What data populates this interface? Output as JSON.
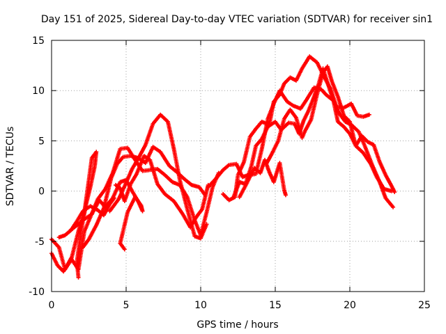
{
  "chart_data": {
    "type": "scatter",
    "title": "Day 151 of 2025, Sidereal Day-to-day VTEC variation (SDTVAR) for receiver sin1",
    "xlabel": "GPS time / hours",
    "ylabel": "SDTVAR / TECUs",
    "xlim": [
      0,
      25
    ],
    "ylim": [
      -10,
      15
    ],
    "x_ticks": [
      0,
      5,
      10,
      15,
      20,
      25
    ],
    "y_ticks": [
      -10,
      -5,
      0,
      5,
      10,
      15
    ],
    "x_tick_labels": [
      "0",
      "5",
      "10",
      "15",
      "20",
      "25"
    ],
    "y_tick_labels": [
      "-10",
      "-5",
      "0",
      "5",
      "10",
      "15"
    ],
    "grid": true,
    "marker": "+",
    "series_color": "#ff0000",
    "series": [
      {
        "name": "satellite-track-1",
        "points": [
          [
            0.0,
            -4.8
          ],
          [
            0.5,
            -5.6
          ],
          [
            0.9,
            -7.8
          ],
          [
            1.3,
            -6.7
          ],
          [
            1.8,
            -7.8
          ],
          [
            2.2,
            -4.0
          ],
          [
            2.6,
            -2.6
          ],
          [
            3.1,
            -0.8
          ],
          [
            3.6,
            0.2
          ],
          [
            4.1,
            1.8
          ],
          [
            4.6,
            4.2
          ],
          [
            5.1,
            4.3
          ],
          [
            5.6,
            3.1
          ],
          [
            6.1,
            2.0
          ],
          [
            6.6,
            2.1
          ],
          [
            7.1,
            2.2
          ],
          [
            7.6,
            1.6
          ],
          [
            8.1,
            0.9
          ],
          [
            8.6,
            0.6
          ],
          [
            9.1,
            -0.6
          ],
          [
            9.6,
            -2.9
          ],
          [
            10.0,
            -4.4
          ],
          [
            10.4,
            -2.1
          ],
          [
            10.8,
            0.4
          ],
          [
            11.2,
            1.8
          ]
        ]
      },
      {
        "name": "satellite-track-2",
        "points": [
          [
            1.2,
            -4.0
          ],
          [
            1.7,
            -3.4
          ],
          [
            2.2,
            -2.8
          ],
          [
            2.7,
            -2.3
          ],
          [
            3.2,
            -0.9
          ],
          [
            3.6,
            -1.6
          ],
          [
            4.1,
            -0.7
          ],
          [
            4.6,
            0.9
          ],
          [
            5.0,
            1.1
          ],
          [
            5.4,
            0.0
          ],
          [
            5.8,
            -1.0
          ],
          [
            6.1,
            -2.0
          ],
          [
            6.0,
            -1.4
          ],
          [
            5.6,
            -0.6
          ],
          [
            5.1,
            -2.1
          ],
          [
            4.6,
            -5.2
          ],
          [
            4.9,
            -5.8
          ]
        ]
      },
      {
        "name": "satellite-track-3",
        "points": [
          [
            0.0,
            -6.2
          ],
          [
            0.4,
            -7.4
          ],
          [
            0.8,
            -8.0
          ],
          [
            1.3,
            -6.9
          ],
          [
            1.8,
            -4.0
          ],
          [
            2.2,
            -2.1
          ],
          [
            2.5,
            1.1
          ],
          [
            2.7,
            3.3
          ],
          [
            3.0,
            3.9
          ],
          [
            2.9,
            2.5
          ],
          [
            2.6,
            0.4
          ],
          [
            2.3,
            -1.4
          ],
          [
            2.0,
            -3.8
          ],
          [
            1.7,
            -7.0
          ],
          [
            1.8,
            -8.6
          ]
        ]
      },
      {
        "name": "satellite-track-4",
        "points": [
          [
            2.1,
            -5.6
          ],
          [
            2.5,
            -4.8
          ],
          [
            3.0,
            -3.4
          ],
          [
            3.5,
            -1.7
          ],
          [
            4.0,
            1.3
          ],
          [
            4.4,
            2.7
          ],
          [
            4.8,
            3.4
          ],
          [
            5.3,
            3.5
          ],
          [
            5.8,
            3.3
          ],
          [
            6.3,
            2.8
          ],
          [
            6.8,
            4.4
          ],
          [
            7.3,
            3.9
          ],
          [
            7.9,
            2.5
          ],
          [
            8.4,
            1.9
          ],
          [
            8.9,
            1.2
          ],
          [
            9.4,
            0.6
          ],
          [
            9.9,
            0.4
          ],
          [
            10.3,
            -0.4
          ]
        ]
      },
      {
        "name": "satellite-track-5",
        "points": [
          [
            3.9,
            -2.0
          ],
          [
            4.5,
            -0.8
          ],
          [
            4.9,
            0.5
          ],
          [
            5.4,
            2.2
          ],
          [
            5.8,
            3.2
          ],
          [
            6.3,
            4.6
          ],
          [
            6.8,
            6.7
          ],
          [
            7.3,
            7.6
          ],
          [
            7.8,
            6.9
          ],
          [
            8.2,
            4.2
          ],
          [
            8.6,
            1.1
          ],
          [
            9.1,
            -1.8
          ],
          [
            9.6,
            -4.5
          ],
          [
            10.0,
            -4.7
          ],
          [
            10.4,
            -3.3
          ]
        ]
      },
      {
        "name": "satellite-track-6",
        "points": [
          [
            4.3,
            0.6
          ],
          [
            4.6,
            0.3
          ],
          [
            4.9,
            -1.0
          ],
          [
            5.3,
            0.7
          ],
          [
            5.7,
            1.7
          ],
          [
            6.2,
            3.5
          ],
          [
            6.6,
            3.1
          ],
          [
            7.1,
            0.7
          ],
          [
            7.6,
            -0.3
          ],
          [
            8.2,
            -1.0
          ],
          [
            8.8,
            -2.3
          ],
          [
            9.3,
            -3.6
          ],
          [
            9.7,
            -2.6
          ],
          [
            10.1,
            -1.8
          ],
          [
            10.5,
            0.6
          ]
        ]
      },
      {
        "name": "satellite-track-7",
        "points": [
          [
            11.5,
            -0.3
          ],
          [
            11.9,
            -0.9
          ],
          [
            12.3,
            -0.6
          ],
          [
            12.5,
            1.6
          ],
          [
            12.9,
            2.9
          ],
          [
            13.3,
            5.4
          ],
          [
            13.7,
            6.2
          ],
          [
            14.1,
            6.9
          ],
          [
            14.6,
            6.6
          ],
          [
            14.9,
            8.9
          ],
          [
            15.3,
            9.6
          ],
          [
            15.6,
            10.7
          ],
          [
            16.0,
            11.3
          ],
          [
            16.4,
            11.0
          ],
          [
            16.8,
            12.2
          ],
          [
            17.3,
            13.4
          ],
          [
            17.8,
            12.8
          ],
          [
            18.3,
            11.3
          ],
          [
            18.7,
            10.2
          ],
          [
            19.1,
            8.4
          ],
          [
            19.6,
            8.3
          ],
          [
            20.1,
            8.7
          ],
          [
            20.5,
            7.5
          ],
          [
            20.9,
            7.4
          ],
          [
            21.3,
            7.6
          ]
        ]
      },
      {
        "name": "satellite-track-8",
        "points": [
          [
            12.2,
            -0.6
          ],
          [
            12.6,
            0.9
          ],
          [
            13.0,
            0.7
          ],
          [
            13.4,
            2.5
          ],
          [
            13.7,
            4.5
          ],
          [
            14.1,
            5.2
          ],
          [
            14.5,
            6.4
          ],
          [
            15.0,
            6.9
          ],
          [
            15.4,
            6.1
          ],
          [
            15.9,
            6.8
          ],
          [
            16.3,
            6.7
          ],
          [
            16.6,
            5.7
          ],
          [
            16.9,
            7.0
          ],
          [
            17.2,
            7.9
          ],
          [
            17.5,
            9.0
          ],
          [
            17.9,
            10.6
          ],
          [
            18.2,
            12.2
          ],
          [
            18.5,
            10.8
          ],
          [
            18.9,
            9.0
          ],
          [
            19.3,
            7.7
          ],
          [
            19.7,
            6.9
          ],
          [
            20.1,
            6.6
          ],
          [
            20.6,
            5.9
          ],
          [
            21.0,
            4.5
          ],
          [
            21.5,
            2.6
          ],
          [
            22.0,
            0.9
          ],
          [
            22.4,
            -0.7
          ],
          [
            22.9,
            -1.6
          ]
        ]
      },
      {
        "name": "satellite-track-9",
        "points": [
          [
            10.5,
            0.4
          ],
          [
            11.0,
            1.2
          ],
          [
            11.5,
            2.1
          ],
          [
            11.9,
            2.6
          ],
          [
            12.4,
            2.7
          ],
          [
            12.8,
            1.4
          ],
          [
            13.2,
            1.6
          ],
          [
            13.7,
            1.7
          ],
          [
            14.1,
            4.2
          ],
          [
            14.5,
            7.2
          ],
          [
            14.9,
            8.7
          ],
          [
            15.3,
            10.0
          ],
          [
            15.8,
            8.9
          ],
          [
            16.2,
            8.5
          ],
          [
            16.7,
            8.2
          ],
          [
            17.1,
            9.1
          ],
          [
            17.6,
            10.3
          ],
          [
            18.1,
            10.1
          ],
          [
            18.4,
            9.6
          ],
          [
            18.9,
            9.0
          ],
          [
            19.2,
            6.9
          ],
          [
            19.6,
            6.4
          ],
          [
            20.0,
            5.7
          ],
          [
            20.4,
            4.5
          ],
          [
            20.9,
            3.8
          ],
          [
            21.4,
            2.7
          ],
          [
            21.8,
            1.4
          ],
          [
            22.3,
            0.2
          ],
          [
            22.8,
            0.0
          ]
        ]
      },
      {
        "name": "satellite-track-10",
        "points": [
          [
            14.4,
            2.7
          ],
          [
            14.8,
            3.8
          ],
          [
            15.2,
            5.0
          ],
          [
            15.6,
            7.2
          ],
          [
            16.0,
            8.1
          ],
          [
            16.4,
            7.3
          ],
          [
            16.8,
            5.3
          ],
          [
            17.0,
            6.0
          ],
          [
            17.4,
            7.1
          ],
          [
            17.8,
            9.6
          ],
          [
            18.2,
            11.8
          ],
          [
            18.5,
            12.4
          ],
          [
            18.8,
            10.9
          ],
          [
            19.2,
            9.4
          ],
          [
            19.6,
            7.5
          ],
          [
            20.0,
            6.9
          ],
          [
            20.4,
            4.5
          ],
          [
            20.8,
            5.5
          ],
          [
            21.2,
            4.9
          ],
          [
            21.6,
            4.6
          ],
          [
            22.0,
            2.9
          ],
          [
            22.4,
            1.6
          ],
          [
            22.8,
            0.5
          ],
          [
            23.0,
            -0.1
          ]
        ]
      },
      {
        "name": "satellite-track-11",
        "points": [
          [
            12.6,
            -0.6
          ],
          [
            13.1,
            0.8
          ],
          [
            13.6,
            2.3
          ],
          [
            14.0,
            1.8
          ],
          [
            14.3,
            3.1
          ],
          [
            14.6,
            1.9
          ],
          [
            14.9,
            0.9
          ],
          [
            15.3,
            2.8
          ],
          [
            15.6,
            0.1
          ],
          [
            15.7,
            -0.4
          ]
        ]
      },
      {
        "name": "satellite-track-12",
        "points": [
          [
            0.5,
            -4.6
          ],
          [
            0.9,
            -4.4
          ],
          [
            1.3,
            -3.9
          ],
          [
            1.7,
            -3.0
          ],
          [
            2.1,
            -2.0
          ],
          [
            2.6,
            -1.5
          ],
          [
            3.1,
            -1.9
          ],
          [
            3.5,
            -2.4
          ],
          [
            3.9,
            -1.3
          ],
          [
            4.2,
            -0.7
          ]
        ]
      }
    ]
  }
}
